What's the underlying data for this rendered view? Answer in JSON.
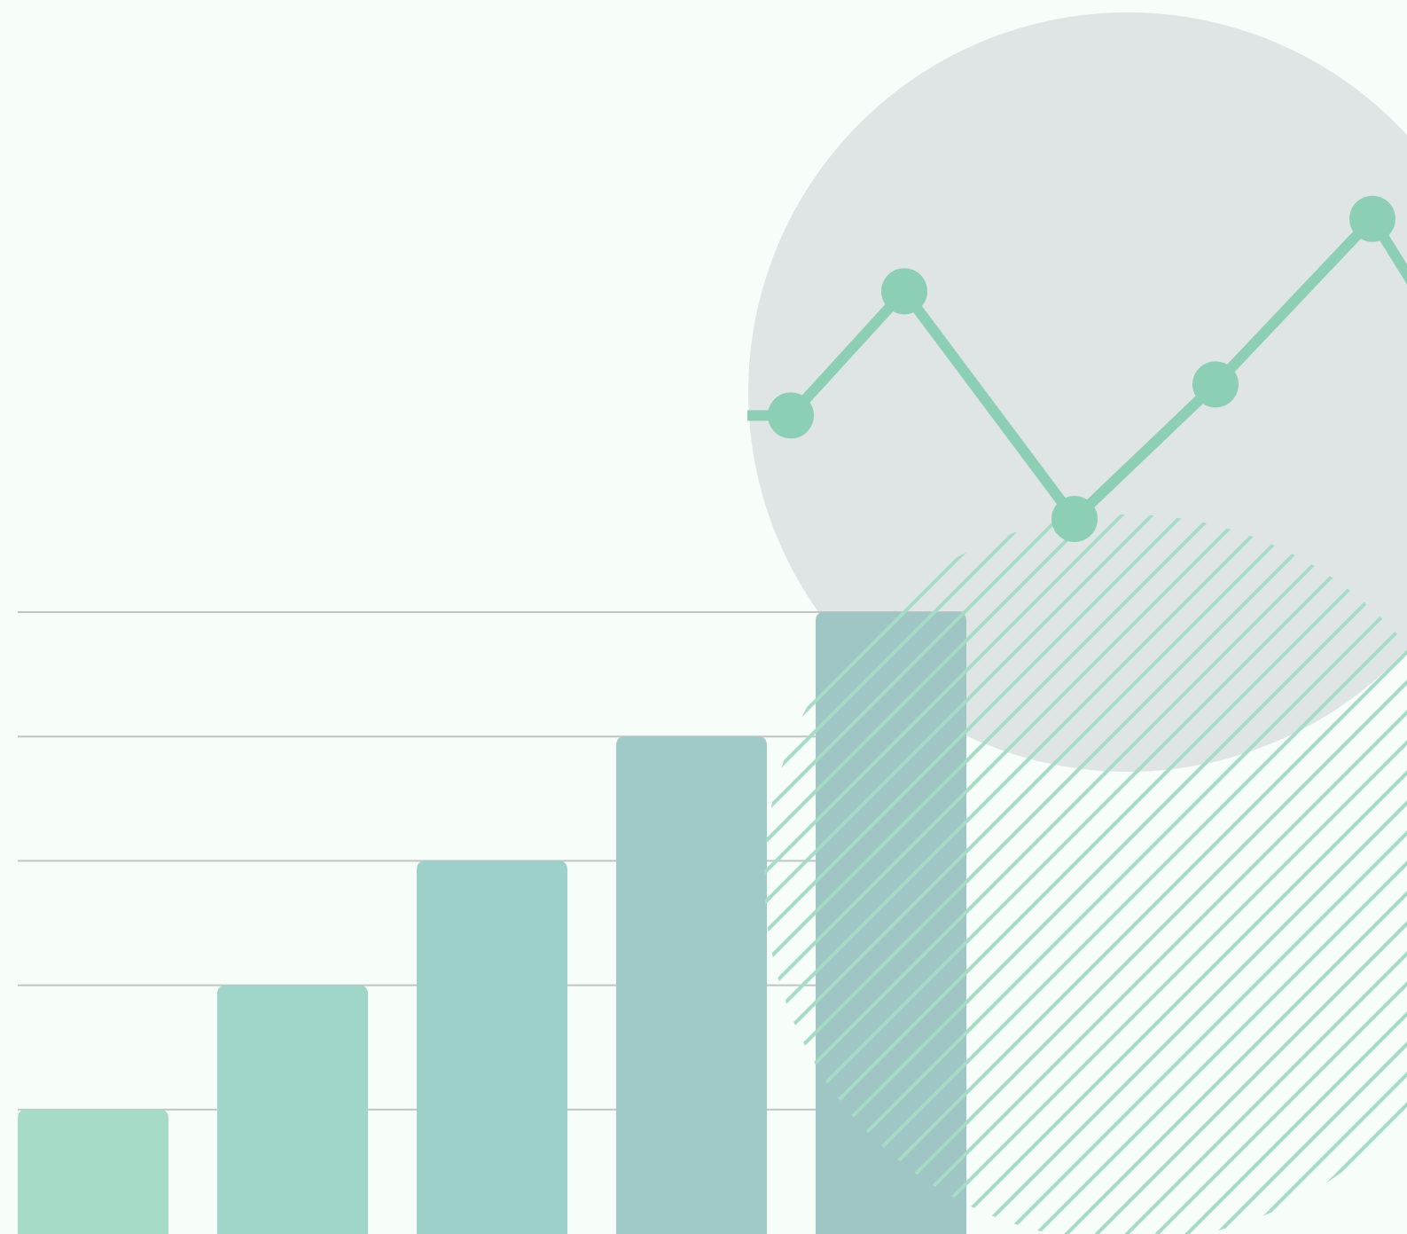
{
  "illustration": {
    "subject": "growth-chart-illustration",
    "colors": {
      "background": "#f7fdf9",
      "circle": "#dfe5e5",
      "line_and_points": "#8dcfb4",
      "hatch": "#a6dcc6",
      "gridline": "#bfc5c3",
      "bar_1": "#a6dbc8",
      "bar_2": "#9fd6c9",
      "bar_3": "#9cd0c8",
      "bar_4": "#9fcac8",
      "bar_5": "#a0c5c5"
    }
  },
  "chart_data": [
    {
      "type": "bar",
      "categories": [
        "",
        "",
        "",
        "",
        ""
      ],
      "values": [
        1,
        2,
        3,
        4,
        5
      ],
      "ylim": [
        0,
        5
      ],
      "grid": true
    },
    {
      "type": "line",
      "x": [
        0,
        1,
        2,
        3,
        4
      ],
      "y": [
        3.1,
        4.3,
        2.1,
        3.4,
        5.0
      ],
      "ylim": [
        0,
        6
      ]
    }
  ]
}
